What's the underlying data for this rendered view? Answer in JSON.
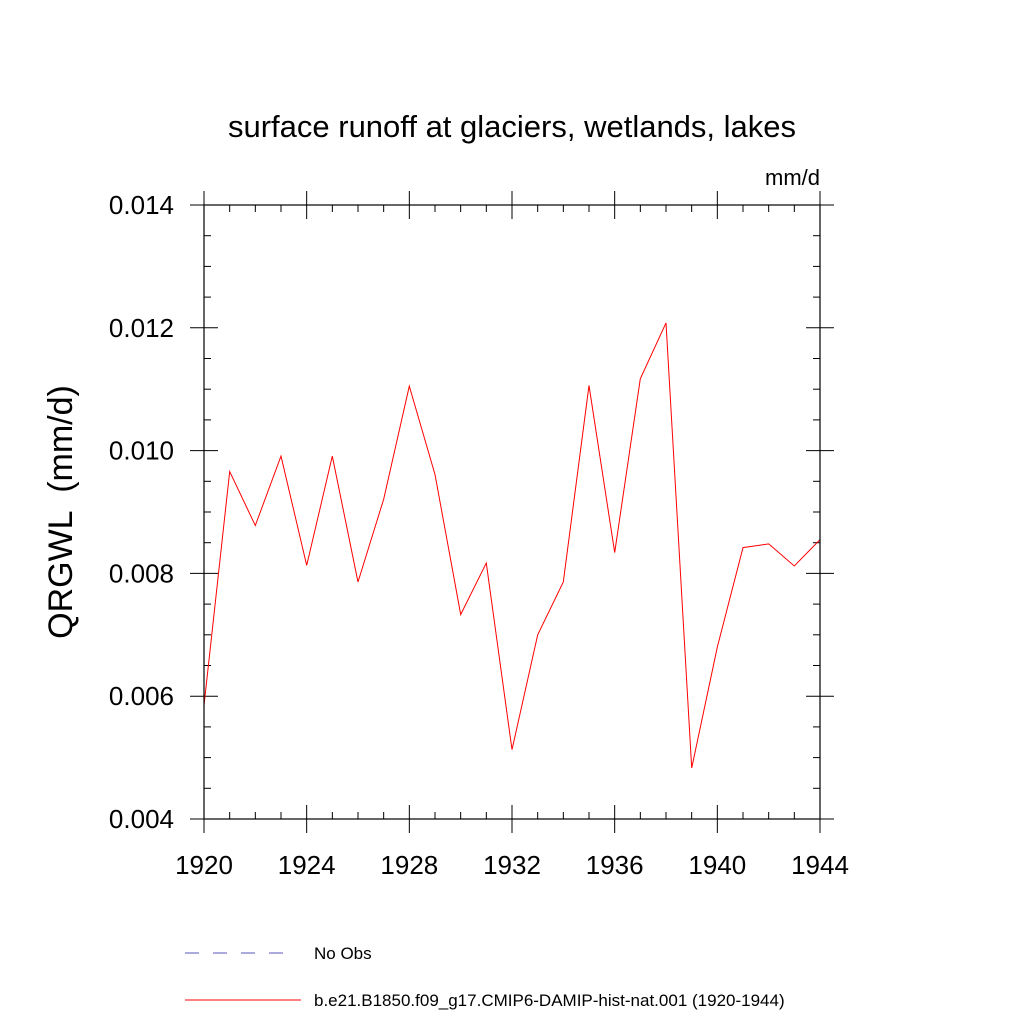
{
  "chart_data": {
    "type": "line",
    "title": "surface runoff at glaciers, wetlands, lakes",
    "units": "mm/d",
    "ylabel": "QRGWL  (mm/d)",
    "xlabel": "",
    "xlim": [
      1920,
      1944
    ],
    "ylim": [
      0.004,
      0.014
    ],
    "xticks": [
      1920,
      1924,
      1928,
      1932,
      1936,
      1940,
      1944
    ],
    "xtick_labels": [
      "1920",
      "1924",
      "1928",
      "1932",
      "1936",
      "1940",
      "1944"
    ],
    "yticks": [
      0.004,
      0.006,
      0.008,
      0.01,
      0.012,
      0.014
    ],
    "ytick_labels": [
      "0.004",
      "0.006",
      "0.008",
      "0.010",
      "0.012",
      "0.014"
    ],
    "x_minor_step": 1,
    "y_minor_step": 0.0005,
    "grid": false,
    "legend_position": "bottom",
    "series": [
      {
        "name": "b.e21.B1850.f09_g17.CMIP6-DAMIP-hist-nat.001 (1920-1944)",
        "color": "#ff0000",
        "style": "solid",
        "x": [
          1920,
          1921,
          1922,
          1923,
          1924,
          1925,
          1926,
          1927,
          1928,
          1929,
          1930,
          1931,
          1932,
          1933,
          1934,
          1935,
          1936,
          1937,
          1938,
          1939,
          1940,
          1941,
          1942,
          1943,
          1944
        ],
        "values": [
          0.00585,
          0.00966,
          0.00878,
          0.00991,
          0.00813,
          0.00991,
          0.00786,
          0.00921,
          0.01105,
          0.00961,
          0.00733,
          0.00817,
          0.00513,
          0.007,
          0.00786,
          0.01106,
          0.00834,
          0.01117,
          0.01208,
          0.00483,
          0.0068,
          0.00842,
          0.00848,
          0.00812,
          0.00855
        ]
      }
    ],
    "legend": [
      {
        "label": "No Obs",
        "color": "#5555bb",
        "style": "dashed"
      },
      {
        "label": "b.e21.B1850.f09_g17.CMIP6-DAMIP-hist-nat.001 (1920-1944)",
        "color": "#ff0000",
        "style": "solid"
      }
    ]
  }
}
